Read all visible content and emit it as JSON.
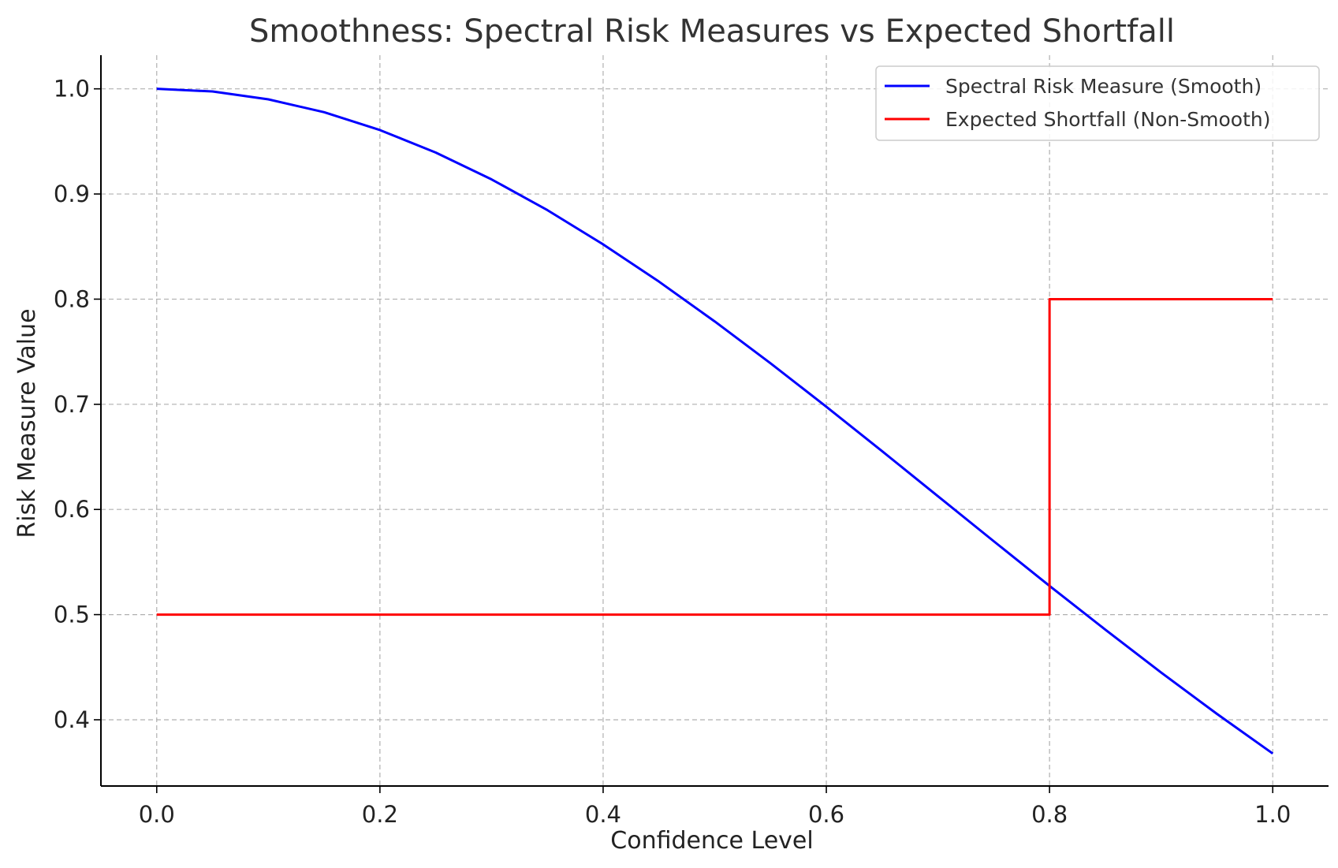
{
  "chart_data": {
    "type": "line",
    "title": "Smoothness: Spectral Risk Measures vs Expected Shortfall",
    "xlabel": "Confidence Level",
    "ylabel": "Risk Measure Value",
    "xlim": [
      -0.05,
      1.05
    ],
    "ylim": [
      0.337,
      1.032
    ],
    "xticks": [
      0.0,
      0.2,
      0.4,
      0.6,
      0.8,
      1.0
    ],
    "xtick_labels": [
      "0.0",
      "0.2",
      "0.4",
      "0.6",
      "0.8",
      "1.0"
    ],
    "yticks": [
      0.4,
      0.5,
      0.6,
      0.7,
      0.8,
      0.9,
      1.0
    ],
    "ytick_labels": [
      "0.4",
      "0.5",
      "0.6",
      "0.7",
      "0.8",
      "0.9",
      "1.0"
    ],
    "grid": true,
    "legend_position": "top-right",
    "series": [
      {
        "name": "Spectral Risk Measure (Smooth)",
        "color": "#0000ff",
        "x": [
          0.0,
          0.05,
          0.1,
          0.15,
          0.2,
          0.25,
          0.3,
          0.35,
          0.4,
          0.45,
          0.5,
          0.55,
          0.6,
          0.65,
          0.7,
          0.75,
          0.8,
          0.85,
          0.9,
          0.95,
          1.0
        ],
        "y": [
          1.0,
          0.9975,
          0.99,
          0.9778,
          0.9608,
          0.9394,
          0.9139,
          0.8847,
          0.8521,
          0.8167,
          0.7788,
          0.739,
          0.6977,
          0.6554,
          0.6126,
          0.5698,
          0.5273,
          0.4857,
          0.4449,
          0.4056,
          0.3679
        ]
      },
      {
        "name": "Expected Shortfall (Non-Smooth)",
        "color": "#ff0000",
        "x": [
          0.0,
          0.8,
          0.8,
          1.0
        ],
        "y": [
          0.5,
          0.5,
          0.8,
          0.8
        ]
      }
    ]
  }
}
